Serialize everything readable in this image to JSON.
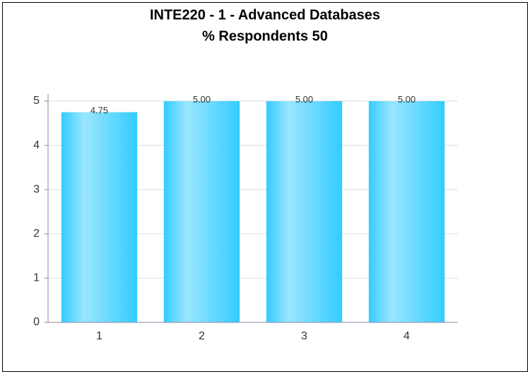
{
  "chart_data": {
    "type": "bar",
    "title": "INTE220 - 1 - Advanced Databases",
    "subtitle": "% Respondents 50",
    "categories": [
      "1",
      "2",
      "3",
      "4"
    ],
    "values": [
      4.75,
      5,
      5,
      5
    ],
    "value_labels": [
      "4.75",
      "5.00",
      "5.00",
      "5.00"
    ],
    "color": "#33ccff",
    "ylim": [
      0,
      5
    ],
    "yticks": [
      0,
      1,
      2,
      3,
      4,
      5
    ],
    "grid": true
  }
}
